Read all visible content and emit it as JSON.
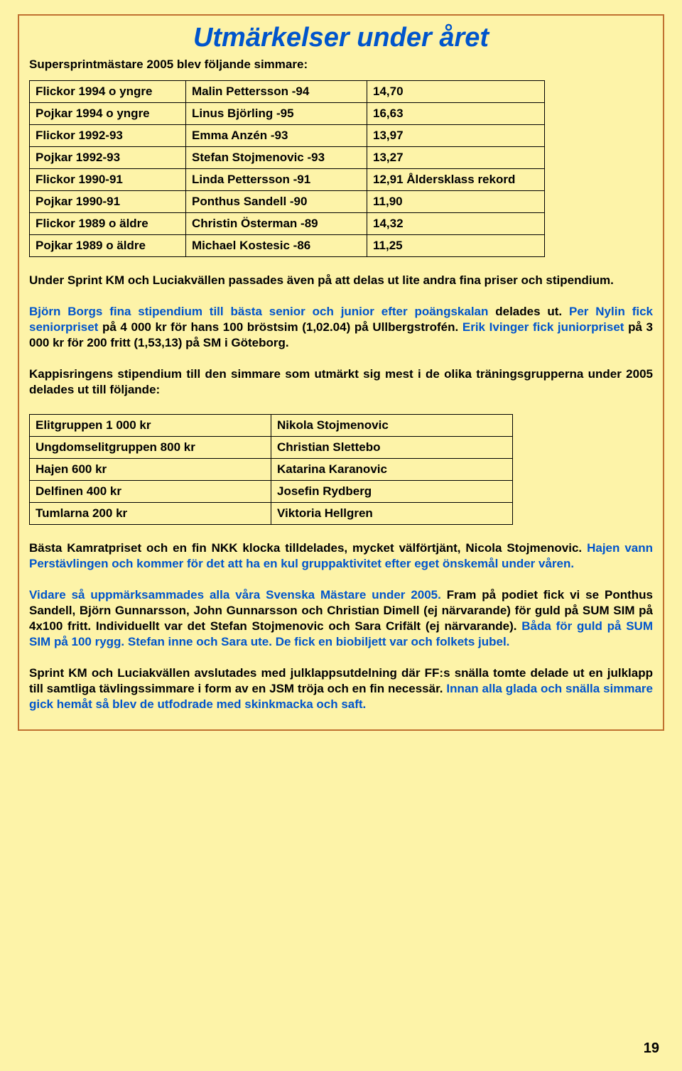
{
  "title": "Utmärkelser under året",
  "intro": "Supersprintmästare 2005 blev följande simmare:",
  "table1": {
    "rows": [
      [
        "Flickor 1994 o yngre",
        "Malin Pettersson -94",
        "14,70"
      ],
      [
        "Pojkar 1994 o yngre",
        "Linus Björling -95",
        "16,63"
      ],
      [
        "Flickor 1992-93",
        "Emma Anzén -93",
        "13,97"
      ],
      [
        "Pojkar 1992-93",
        "Stefan Stojmenovic -93",
        "13,27"
      ],
      [
        "Flickor 1990-91",
        "Linda Pettersson -91",
        "12,91 Åldersklass rekord"
      ],
      [
        "Pojkar 1990-91",
        "Ponthus Sandell -90",
        "11,90"
      ],
      [
        "Flickor 1989 o äldre",
        "Christin Österman -89",
        "14,32"
      ],
      [
        "Pojkar 1989 o äldre",
        "Michael Kostesic -86",
        "11,25"
      ]
    ]
  },
  "para1": "Under Sprint KM och Luciakvällen passades även på att delas ut lite andra fina priser och stipendium.",
  "para2": {
    "s1a": "Björn Borgs fina stipendium till bästa senior och junior efter poängskalan",
    "s1b": " delades ut. ",
    "s2a": "Per Nylin fick seniorpriset",
    "s2b": " på 4 000 kr för hans 100 bröstsim (1,02.04) på Ullbergstrofén. ",
    "s3a": "Erik Ivinger fick juniorpriset",
    "s3b": " på 3 000 kr för 200 fritt (1,53,13) på SM i Göteborg."
  },
  "para3": "Kappisringens stipendium till den simmare som utmärkt sig mest i de olika träningsgrupperna under 2005 delades ut till följande:",
  "table2": {
    "rows": [
      [
        "Elitgruppen 1 000 kr",
        "Nikola Stojmenovic"
      ],
      [
        "Ungdomselitgruppen 800 kr",
        "Christian Slettebo"
      ],
      [
        "Hajen 600 kr",
        "Katarina Karanovic"
      ],
      [
        "Delfinen 400 kr",
        "Josefin Rydberg"
      ],
      [
        "Tumlarna 200 kr",
        "Viktoria Hellgren"
      ]
    ]
  },
  "para4": {
    "a": "Bästa Kamratpriset och en fin NKK klocka tilldelades, mycket välförtjänt, Nicola Stojmenovic. ",
    "b": "Hajen vann Perstävlingen och kommer för det att ha en kul gruppaktivitet efter eget önskemål under våren."
  },
  "para5": {
    "a": "Vidare så uppmärksammades alla våra Svenska Mästare under 2005.",
    "b": " Fram på podiet fick vi se Ponthus Sandell, Björn Gunnarsson, John Gunnarsson och Christian Dimell (ej närvarande) för guld på SUM SIM på 4x100 fritt. Individuellt var det Stefan Stojmenovic och Sara Crifält (ej närvarande). ",
    "c": "Båda för guld på SUM SIM på 100 rygg. Stefan inne och Sara ute. De fick en biobiljett var och folkets jubel."
  },
  "para6": {
    "a": "Sprint KM och Luciakvällen avslutades med julklappsutdelning där FF:s snälla tomte delade ut en julklapp till samtliga tävlingssimmare i form av en JSM tröja och en fin necessär. ",
    "b": "Innan alla glada och snälla simmare gick hemåt så blev de utfodrade med skinkmacka och saft."
  },
  "pageNumber": "19",
  "colors": {
    "background": "#fdf3a8",
    "accent": "#0055cc",
    "frame": "#c07030"
  }
}
